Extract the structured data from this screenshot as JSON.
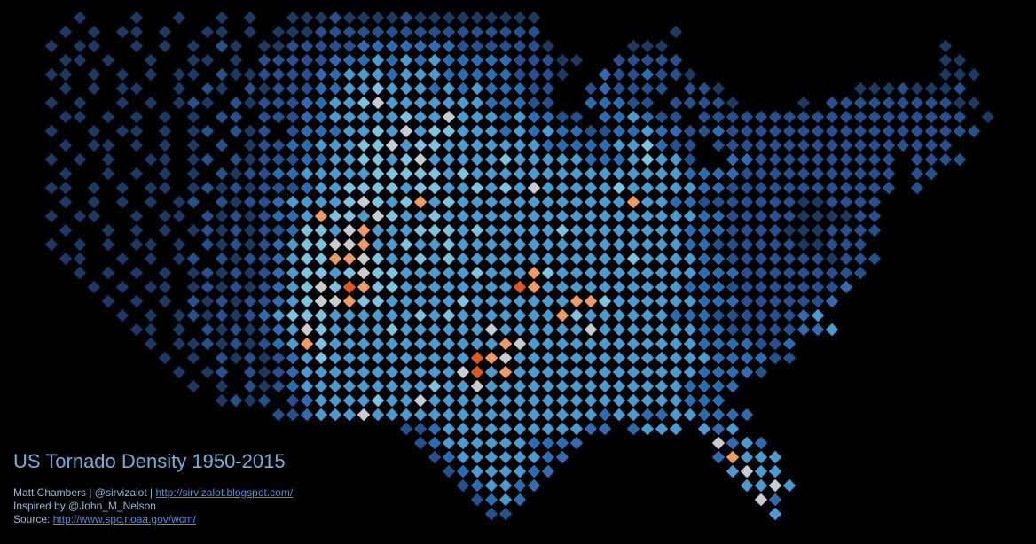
{
  "title": "US Tornado Density 1950-2015",
  "credits": [
    {
      "text": "Matt Chambers | @sirvizalot | ",
      "link": "http://sirvizalot.blogspot.com/"
    },
    {
      "text": "Inspired by @John_M_Nelson"
    },
    {
      "text": "Source: ",
      "link": "http://www.spc.noaa.gov/wcm/"
    }
  ],
  "map": {
    "palette": {
      "1": "#1b3a66",
      "2": "#24528c",
      "3": "#2e6db0",
      "4": "#4a9bd0",
      "5": "#7cc3e3",
      "6": "#c9cccf",
      "7": "#f09a62",
      "8": "#e0591a"
    },
    "rows": [
      "..1...1..1..1.1..111211112111111111",
      ".1.1.11.1..11.1.1112222222222222222.........1",
      "1.11..1.1.1.21.112222233333332222221.....111...................1",
      ".11.1..1..11.1.22222333434343333322211..22222..................11",
      "11.1.1.1.11.2112222334443444333332221..3223221.................111",
      ".1.1.11..1.21.2122233445444343433322..232222.221.........11121112",
      "1.1..1.1.121.21222334456444444433322..33322.22221....1.22222222211",
      ".11.1.1.1.1.22.22233444445446444343322.334322.2222222222222222222.1",
      "1..1.11.1.12.212.2333445464554443434332233433223222222222222222222",
      ".1.11.1.1.1.2.12233444556455444444433333445322.22222222222222222.",
      "1.1.1..11.12.212223344554564444454444433345442..332222222222.2222",
      ".1..1.1.1.1.212233444445555545444444444444444333322222222222.22",
      "11.1.1.11.12121222344555545544545464444454444433222222222222.2.",
      ".1.1.1.1.12.21223444456545745444444444444744332222222112222.",
      "1.11..1.11.212123347554654454444444444444444443322222111122.",
      ".1..1.1.1.1212122355467444555454444454444444433322221112222",
      "1.1.1.11.1.21212345566744544544444444444444443322222211222",
      ".11..1.1.12.21223455776544545444444444444544443322222221222",
      "..1.1.1.1.121212345545655444445444754444444444333222222222",
      "...1.1.11.12121234565875544444444874444444444333222222223",
      "....1.1.1.2121223456675544444544444447754444443332222223",
      ".....1.1.1212123455544444454544444447544444433322222234",
      "......11.1.212123465444454444446444444644444443322222334",
      ".......1.11212123475444444444444764444444444443333223",
      "........1.1.21212345444444444487644444444444444333322",
      ".........1.12.2123444444444446847444444444444433332",
      "..........1.1.21234444444445446444444444444443333",
      "............1212.2344445446444444444444444444333",
      "................2234446444444444444444434433443333",
      ".........................223444444444433.3444.434",
      "..........................234444443333.........6343",
      "...........................2344444433..........37444",
      "............................23444433............4644",
      ".............................234433..............4464",
      "..............................2343................63",
      "...............................22..................4"
    ]
  }
}
